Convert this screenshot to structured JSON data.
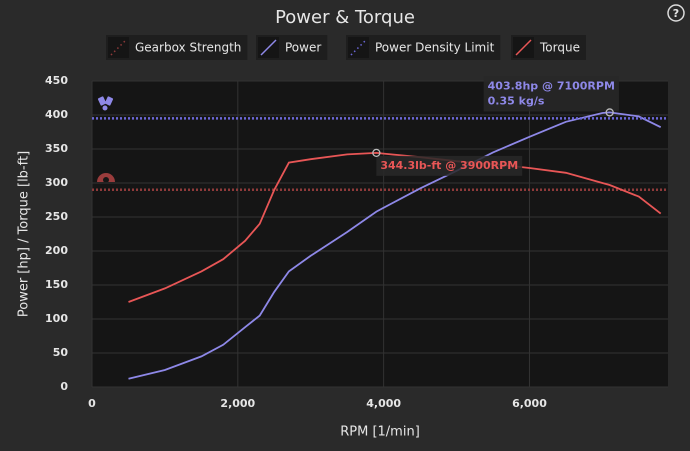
{
  "chart_data": {
    "type": "line",
    "title": "Power & Torque",
    "x_label": "RPM [1/min]",
    "y_label": "Power [hp] / Torque [lb-ft]",
    "x": [
      500,
      1000,
      1500,
      1800,
      2100,
      2300,
      2500,
      2700,
      3000,
      3500,
      3900,
      4500,
      5000,
      5500,
      6000,
      6500,
      7000,
      7100,
      7500,
      7800
    ],
    "series": [
      {
        "name": "Gearbox Strength",
        "kind": "hline",
        "value": 290,
        "color": "#8e3a3a"
      },
      {
        "name": "Power",
        "kind": "line",
        "color": "#8e88e8",
        "values": [
          12,
          25,
          45,
          62,
          88,
          105,
          140,
          170,
          193,
          228,
          258,
          292,
          318,
          345,
          368,
          390,
          403,
          403.8,
          398,
          382
        ]
      },
      {
        "name": "Power Density Limit",
        "kind": "hline",
        "value": 395,
        "color": "#6c68d8"
      },
      {
        "name": "Torque",
        "kind": "line",
        "color": "#e85656",
        "values": [
          125,
          145,
          170,
          188,
          215,
          240,
          290,
          330,
          335,
          342,
          344.3,
          338,
          332,
          328,
          322,
          315,
          300,
          297,
          280,
          255
        ]
      }
    ],
    "annotations": [
      {
        "lines": [
          "403.8hp @ 7100RPM",
          "0.35 kg/s"
        ],
        "x": 7100,
        "y": 403.8,
        "color": "#8e88e8"
      },
      {
        "lines": [
          "344.3lb-ft @ 3900RPM"
        ],
        "x": 3900,
        "y": 344.3,
        "color": "#e85656"
      }
    ],
    "xlim": [
      0,
      7900
    ],
    "ylim": [
      0,
      450
    ],
    "xticks": [
      0,
      {
        "value": 2000,
        "label": "2,000"
      },
      {
        "value": 4000,
        "label": "4,000"
      },
      {
        "value": 6000,
        "label": "6,000"
      }
    ],
    "yticks": [
      0,
      50,
      100,
      150,
      200,
      250,
      300,
      350,
      400,
      450
    ],
    "grid": true,
    "help_icon": "?"
  }
}
